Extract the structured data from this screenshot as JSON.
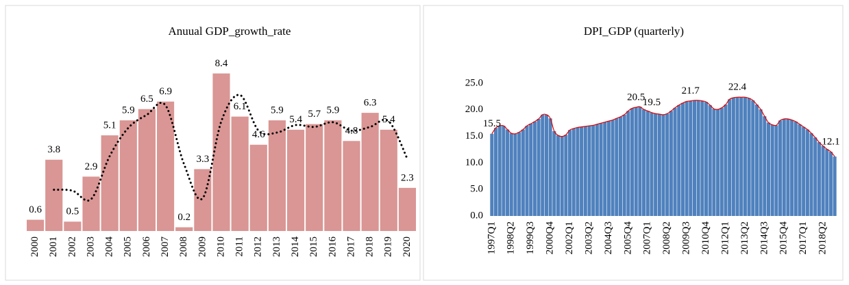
{
  "chart_data": [
    {
      "type": "bar",
      "title": "Anuual GDP_growth_rate",
      "categories": [
        "2000",
        "2001",
        "2002",
        "2003",
        "2004",
        "2005",
        "2006",
        "2007",
        "2008",
        "2009",
        "2010",
        "2011",
        "2012",
        "2013",
        "2014",
        "2015",
        "2016",
        "2017",
        "2018",
        "2019",
        "2020"
      ],
      "values": [
        0.6,
        3.8,
        0.5,
        2.9,
        5.1,
        5.9,
        6.5,
        6.9,
        0.2,
        3.3,
        8.4,
        6.1,
        4.6,
        5.9,
        5.4,
        5.7,
        5.9,
        4.8,
        6.3,
        5.4,
        2.3
      ],
      "color": "#d99694",
      "trendline": [
        null,
        2.2,
        2.15,
        1.7,
        4.0,
        5.5,
        6.2,
        6.7,
        3.55,
        1.75,
        5.85,
        7.25,
        5.35,
        5.25,
        5.65,
        5.55,
        5.8,
        5.35,
        5.55,
        5.85,
        3.85
      ],
      "trendline_color": "#000000",
      "ylim": [
        0,
        9
      ]
    },
    {
      "type": "bar",
      "title": "DPI_GDP (quarterly)",
      "categories": [
        "1997Q1",
        null,
        null,
        null,
        null,
        "1998Q2",
        null,
        null,
        null,
        null,
        "1999Q3",
        null,
        null,
        null,
        null,
        "2000Q4",
        null,
        null,
        null,
        null,
        "2002Q1",
        null,
        null,
        null,
        null,
        "2003Q2",
        null,
        null,
        null,
        null,
        "2004Q3",
        null,
        null,
        null,
        null,
        "2005Q4",
        null,
        null,
        null,
        null,
        "2007Q1",
        null,
        null,
        null,
        null,
        "2008Q2",
        null,
        null,
        null,
        null,
        "2009Q3",
        null,
        null,
        null,
        null,
        "2010Q4",
        null,
        null,
        null,
        null,
        "2012Q1",
        null,
        null,
        null,
        null,
        "2013Q2",
        null,
        null,
        null,
        null,
        "2014Q3",
        null,
        null,
        null,
        null,
        "2015Q4",
        null,
        null,
        null,
        null,
        "2017Q1",
        null,
        null,
        null,
        null,
        "2018Q2",
        null,
        null,
        null
      ],
      "values": [
        15.5,
        16.6,
        17.0,
        17.0,
        16.3,
        15.6,
        15.5,
        15.8,
        16.3,
        17.0,
        17.4,
        17.8,
        18.3,
        19.1,
        19.1,
        18.4,
        16.0,
        15.2,
        15.0,
        15.3,
        16.2,
        16.5,
        16.7,
        16.8,
        16.9,
        17.0,
        17.1,
        17.3,
        17.5,
        17.7,
        17.9,
        18.1,
        18.4,
        18.7,
        19.1,
        19.8,
        20.3,
        20.5,
        20.6,
        20.1,
        19.8,
        19.5,
        19.3,
        19.2,
        19.1,
        19.3,
        19.8,
        20.4,
        20.9,
        21.3,
        21.6,
        21.7,
        21.8,
        21.8,
        21.7,
        21.5,
        20.9,
        20.2,
        20.1,
        20.4,
        21.0,
        22.0,
        22.3,
        22.4,
        22.4,
        22.4,
        22.2,
        21.8,
        21.0,
        20.1,
        18.8,
        17.6,
        17.2,
        17.1,
        18.0,
        18.3,
        18.3,
        18.1,
        17.8,
        17.3,
        16.8,
        16.3,
        15.6,
        14.8,
        13.9,
        13.2,
        12.6,
        12.1,
        11.2
      ],
      "value_labels": [
        "15.5",
        null,
        null,
        null,
        null,
        null,
        null,
        null,
        null,
        null,
        null,
        null,
        null,
        null,
        null,
        null,
        null,
        null,
        null,
        null,
        null,
        null,
        null,
        null,
        null,
        null,
        null,
        null,
        null,
        null,
        null,
        null,
        null,
        null,
        null,
        null,
        null,
        "20.5",
        null,
        null,
        null,
        "19.5",
        null,
        null,
        null,
        null,
        null,
        null,
        null,
        null,
        null,
        "21.7",
        null,
        null,
        null,
        null,
        null,
        null,
        null,
        null,
        null,
        null,
        null,
        "22.4",
        null,
        null,
        null,
        null,
        null,
        null,
        null,
        null,
        null,
        null,
        null,
        null,
        null,
        null,
        null,
        null,
        null,
        null,
        null,
        null,
        null,
        null,
        null,
        "12.1",
        null
      ],
      "color": "#4f81bd",
      "line_color": "#e00000",
      "ylim": [
        0,
        25
      ],
      "yticks": [
        {
          "value": 0,
          "label": "0.0"
        },
        {
          "value": 5,
          "label": "5.0"
        },
        {
          "value": 10,
          "label": "10.0"
        },
        {
          "value": 15,
          "label": "15.0"
        },
        {
          "value": 20,
          "label": "20.0"
        },
        {
          "value": 25,
          "label": "25.0"
        }
      ]
    }
  ]
}
